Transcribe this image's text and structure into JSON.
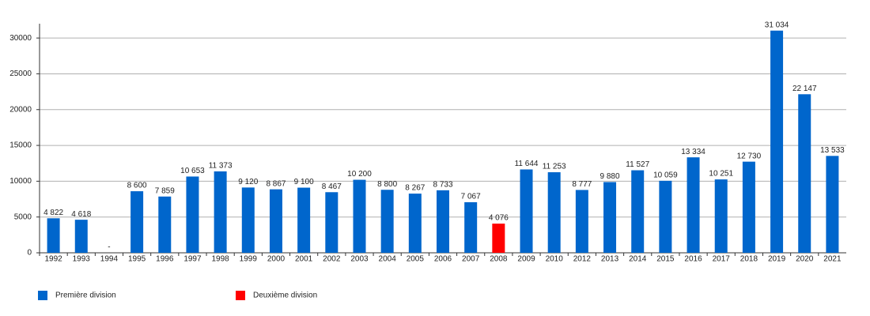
{
  "chart_data": {
    "type": "bar",
    "categories": [
      "1992",
      "1993",
      "1994",
      "1995",
      "1996",
      "1997",
      "1998",
      "1999",
      "2000",
      "2001",
      "2002",
      "2003",
      "2004",
      "2005",
      "2006",
      "2007",
      "2008",
      "2009",
      "2010",
      "2012",
      "2013",
      "2014",
      "2015",
      "2016",
      "2017",
      "2018",
      "2019",
      "2020",
      "2021"
    ],
    "series": [
      {
        "name": "Première division",
        "color": "#0066cc",
        "values": [
          4822,
          4618,
          null,
          8600,
          7859,
          10653,
          11373,
          9120,
          8867,
          9100,
          8467,
          10200,
          8800,
          8267,
          8733,
          7067,
          null,
          11644,
          11253,
          8777,
          9880,
          11527,
          10059,
          13334,
          10251,
          12730,
          31034,
          22147,
          13533
        ],
        "value_labels": [
          "4 822",
          "4 618",
          "-",
          "8 600",
          "7 859",
          "10 653",
          "11 373",
          "9 120",
          "8 867",
          "9 100",
          "8 467",
          "10 200",
          "8 800",
          "8 267",
          "8 733",
          "7 067",
          null,
          "11 644",
          "11 253",
          "8 777",
          "9 880",
          "11 527",
          "10 059",
          "13 334",
          "10 251",
          "12 730",
          "31 034",
          "22 147",
          "13 533"
        ]
      },
      {
        "name": "Deuxième division",
        "color": "#ff0000",
        "values": [
          null,
          null,
          null,
          null,
          null,
          null,
          null,
          null,
          null,
          null,
          null,
          null,
          null,
          null,
          null,
          null,
          4076,
          null,
          null,
          null,
          null,
          null,
          null,
          null,
          null,
          null,
          null,
          null,
          null
        ],
        "value_labels": [
          null,
          null,
          null,
          null,
          null,
          null,
          null,
          null,
          null,
          null,
          null,
          null,
          null,
          null,
          null,
          null,
          "4 076",
          null,
          null,
          null,
          null,
          null,
          null,
          null,
          null,
          null,
          null,
          null,
          null
        ]
      }
    ],
    "ylim": [
      0,
      32000
    ],
    "yticks": [
      0,
      5000,
      10000,
      15000,
      20000,
      25000,
      30000
    ],
    "grid": true,
    "legend": "bottom"
  }
}
